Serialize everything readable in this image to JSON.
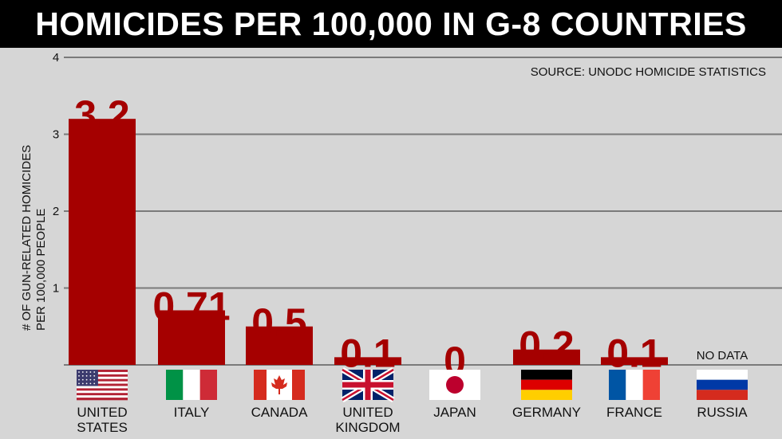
{
  "title": "HOMICIDES PER 100,000 IN G-8 COUNTRIES",
  "source": "SOURCE: UNODC HOMICIDE STATISTICS",
  "ylabel": [
    "# OF GUN-RELATED HOMICIDES",
    "PER 100,000 PEOPLE"
  ],
  "no_data_label": "NO DATA",
  "colors": {
    "bar": "#a50000",
    "grid": "#7a7a7a",
    "background": "#d6d6d6"
  },
  "chart_data": {
    "type": "bar",
    "title": "HOMICIDES PER 100,000 IN G-8 COUNTRIES",
    "ylabel": "# OF GUN-RELATED HOMICIDES PER 100,000 PEOPLE",
    "ylim": [
      0,
      4
    ],
    "yticks": [
      1,
      2,
      3,
      4
    ],
    "grid": true,
    "categories": [
      [
        "UNITED",
        "STATES"
      ],
      [
        "ITALY"
      ],
      [
        "CANADA"
      ],
      [
        "UNITED",
        "KINGDOM"
      ],
      [
        "JAPAN"
      ],
      [
        "GERMANY"
      ],
      [
        "FRANCE"
      ],
      [
        "RUSSIA"
      ]
    ],
    "values": [
      3.2,
      0.71,
      0.5,
      0.1,
      0,
      0.2,
      0.1,
      null
    ],
    "value_labels": [
      "3.2",
      "0.71",
      "0.5",
      "0.1",
      "0",
      "0.2",
      "0.1",
      ""
    ],
    "flags": [
      "us-flag-icon",
      "italy-flag-icon",
      "canada-flag-icon",
      "uk-flag-icon",
      "japan-flag-icon",
      "germany-flag-icon",
      "france-flag-icon",
      "russia-flag-icon"
    ]
  }
}
